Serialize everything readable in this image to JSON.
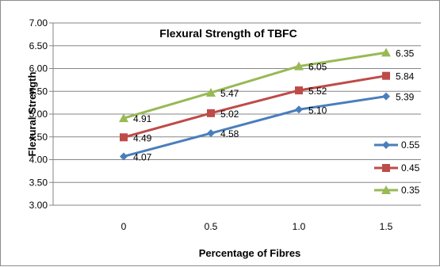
{
  "chart_data": {
    "type": "line",
    "title": "Flexural Strength of TBFC",
    "xlabel": "Percentage of Fibres",
    "ylabel": "Flexural Strength",
    "categories": [
      "0",
      "0.5",
      "1.0",
      "1.5"
    ],
    "ylim": [
      3.0,
      7.0
    ],
    "ytick_labels": [
      "3.00",
      "3.50",
      "4.00",
      "4.50",
      "5.00",
      "5.50",
      "6.00",
      "6.50",
      "7.00"
    ],
    "grid": "horizontal-major",
    "legend_position": "right",
    "series": [
      {
        "name": "0.55",
        "values": [
          4.07,
          4.58,
          5.1,
          5.39
        ],
        "labels": [
          "4.07",
          "4.58",
          "5.10",
          "5.39"
        ],
        "color": "#4a7ebb",
        "marker": "diamond"
      },
      {
        "name": "0.45",
        "values": [
          4.49,
          5.02,
          5.52,
          5.84
        ],
        "labels": [
          "4.49",
          "5.02",
          "5.52",
          "5.84"
        ],
        "color": "#be4b48",
        "marker": "square"
      },
      {
        "name": "0.35",
        "values": [
          4.91,
          5.47,
          6.05,
          6.35
        ],
        "labels": [
          "4.91",
          "5.47",
          "6.05",
          "6.35"
        ],
        "color": "#98b954",
        "marker": "triangle"
      }
    ]
  }
}
